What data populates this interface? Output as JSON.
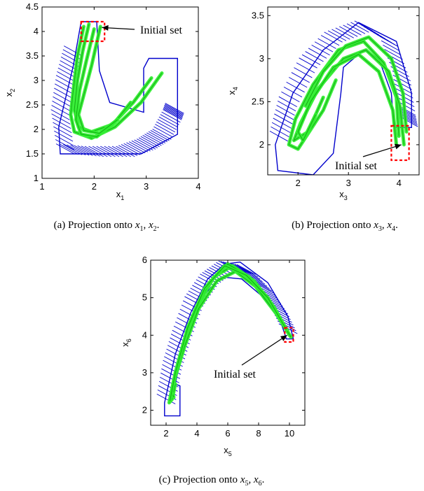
{
  "chart_data": [
    {
      "type": "scatter",
      "caption": {
        "label": "(a)",
        "text": "Projection onto",
        "v1": "x",
        "s1": "1",
        "sep": ",",
        "v2": "x",
        "s2": "2",
        "end": "."
      },
      "xlabel": {
        "base": "x",
        "sub": "1"
      },
      "ylabel": {
        "base": "x",
        "sub": "2"
      },
      "xlim": [
        1,
        4
      ],
      "ylim": [
        1,
        4.5
      ],
      "xticks": [
        "1",
        "2",
        "3",
        "4"
      ],
      "yticks": [
        "1",
        "1.5",
        "2",
        "2.5",
        "3",
        "3.5",
        "4",
        "4.5"
      ],
      "annotation": {
        "text": "Initial set",
        "point": [
          2.15,
          4.08
        ]
      },
      "initial_set": {
        "x": [
          1.75,
          2.2
        ],
        "y": [
          3.8,
          4.2
        ]
      },
      "colors": {
        "reach_set": "#0000cc",
        "trajectories": "#33ee33",
        "initial_set": "#ff0000"
      },
      "reach_hull": [
        [
          1.35,
          1.5
        ],
        [
          2.9,
          1.5
        ],
        [
          3.6,
          1.9
        ],
        [
          3.6,
          3.45
        ],
        [
          3.05,
          3.45
        ],
        [
          2.95,
          3.25
        ],
        [
          2.95,
          2.35
        ],
        [
          2.3,
          2.55
        ],
        [
          2.1,
          3.2
        ],
        [
          2.05,
          4.2
        ],
        [
          1.75,
          4.2
        ],
        [
          1.6,
          3.3
        ],
        [
          1.32,
          2.05
        ]
      ],
      "reach_hatch": [
        [
          1.6,
          3.6
        ],
        [
          1.45,
          3.0
        ],
        [
          1.35,
          2.3
        ],
        [
          1.45,
          1.6
        ],
        [
          2.0,
          1.55
        ],
        [
          2.6,
          1.55
        ],
        [
          3.0,
          1.7
        ],
        [
          3.3,
          1.9
        ],
        [
          3.5,
          2.3
        ],
        [
          3.55,
          2.45
        ]
      ],
      "trajectories": [
        [
          [
            1.8,
            4.1
          ],
          [
            1.68,
            3.5
          ],
          [
            1.6,
            2.8
          ],
          [
            1.55,
            2.3
          ],
          [
            1.62,
            1.95
          ],
          [
            1.95,
            1.82
          ],
          [
            2.4,
            2.05
          ],
          [
            2.9,
            2.55
          ],
          [
            3.3,
            3.15
          ]
        ],
        [
          [
            1.9,
            4.15
          ],
          [
            1.78,
            3.6
          ],
          [
            1.68,
            3.0
          ],
          [
            1.62,
            2.4
          ],
          [
            1.7,
            2.05
          ],
          [
            1.95,
            1.95
          ],
          [
            2.35,
            2.1
          ],
          [
            2.75,
            2.55
          ],
          [
            3.1,
            3.05
          ]
        ],
        [
          [
            2.0,
            4.05
          ],
          [
            1.85,
            3.4
          ],
          [
            1.72,
            2.8
          ],
          [
            1.65,
            2.2
          ],
          [
            1.75,
            1.9
          ],
          [
            2.05,
            1.85
          ],
          [
            2.4,
            2.15
          ],
          [
            2.7,
            2.55
          ]
        ],
        [
          [
            2.12,
            4.1
          ],
          [
            1.95,
            3.3
          ],
          [
            1.8,
            2.7
          ],
          [
            1.7,
            2.3
          ],
          [
            1.8,
            1.98
          ],
          [
            2.1,
            1.92
          ],
          [
            2.45,
            2.2
          ]
        ]
      ]
    },
    {
      "type": "scatter",
      "caption": {
        "label": "(b)",
        "text": "Projection onto",
        "v1": "x",
        "s1": "3",
        "sep": ",",
        "v2": "x",
        "s2": "4",
        "end": "."
      },
      "xlabel": {
        "base": "x",
        "sub": "3"
      },
      "ylabel": {
        "base": "x",
        "sub": "4"
      },
      "xlim": [
        1.4,
        4.4
      ],
      "ylim": [
        1.65,
        3.6
      ],
      "xticks": [
        "2",
        "3",
        "4"
      ],
      "yticks": [
        "2",
        "2.5",
        "3",
        "3.5"
      ],
      "annotation": {
        "text": "Initial set",
        "point": [
          4.05,
          2.0
        ]
      },
      "initial_set": {
        "x": [
          3.85,
          4.2
        ],
        "y": [
          1.82,
          2.22
        ]
      },
      "colors": {
        "reach_set": "#0000cc",
        "trajectories": "#33ee33",
        "initial_set": "#ff0000"
      },
      "reach_hull": [
        [
          1.6,
          1.7
        ],
        [
          2.3,
          1.65
        ],
        [
          2.7,
          1.9
        ],
        [
          2.85,
          2.6
        ],
        [
          2.9,
          2.9
        ],
        [
          3.3,
          3.1
        ],
        [
          3.6,
          3.0
        ],
        [
          3.85,
          2.6
        ],
        [
          3.9,
          2.2
        ],
        [
          4.25,
          2.2
        ],
        [
          4.25,
          2.6
        ],
        [
          3.95,
          3.2
        ],
        [
          3.2,
          3.42
        ],
        [
          2.5,
          3.1
        ],
        [
          1.9,
          2.6
        ],
        [
          1.55,
          2.0
        ]
      ],
      "reach_hatch": [
        [
          1.62,
          2.1
        ],
        [
          1.8,
          2.5
        ],
        [
          2.2,
          2.95
        ],
        [
          2.7,
          3.25
        ],
        [
          3.3,
          3.38
        ],
        [
          3.8,
          3.2
        ],
        [
          4.05,
          2.8
        ],
        [
          4.15,
          2.4
        ],
        [
          4.2,
          2.25
        ]
      ],
      "trajectories": [
        [
          [
            4.0,
            2.1
          ],
          [
            3.95,
            2.55
          ],
          [
            3.7,
            2.95
          ],
          [
            3.3,
            3.2
          ],
          [
            2.8,
            3.1
          ],
          [
            2.3,
            2.7
          ],
          [
            1.95,
            2.3
          ],
          [
            1.82,
            2.0
          ],
          [
            2.0,
            1.95
          ],
          [
            2.5,
            2.4
          ],
          [
            2.75,
            2.75
          ]
        ],
        [
          [
            4.1,
            2.0
          ],
          [
            4.02,
            2.45
          ],
          [
            3.8,
            2.85
          ],
          [
            3.35,
            3.1
          ],
          [
            2.9,
            3.0
          ],
          [
            2.4,
            2.65
          ],
          [
            2.05,
            2.25
          ],
          [
            1.92,
            2.05
          ],
          [
            2.2,
            2.15
          ],
          [
            2.5,
            2.55
          ]
        ],
        [
          [
            3.95,
            2.0
          ],
          [
            3.88,
            2.4
          ],
          [
            3.6,
            2.85
          ],
          [
            3.2,
            3.05
          ],
          [
            2.7,
            2.9
          ],
          [
            2.25,
            2.5
          ],
          [
            2.0,
            2.15
          ],
          [
            2.1,
            2.05
          ],
          [
            2.35,
            2.35
          ]
        ],
        [
          [
            4.15,
            2.15
          ],
          [
            4.08,
            2.6
          ],
          [
            3.85,
            3.0
          ],
          [
            3.4,
            3.25
          ],
          [
            2.95,
            3.15
          ],
          [
            2.5,
            2.85
          ],
          [
            2.15,
            2.45
          ]
        ]
      ]
    },
    {
      "type": "scatter",
      "caption": {
        "label": "(c)",
        "text": "Projection onto",
        "v1": "x",
        "s1": "5",
        "sep": ",",
        "v2": "x",
        "s2": "6",
        "end": "."
      },
      "xlabel": {
        "base": "x",
        "sub": "5"
      },
      "ylabel": {
        "base": "x",
        "sub": "6"
      },
      "xlim": [
        1,
        11
      ],
      "ylim": [
        1.6,
        6
      ],
      "xticks": [
        "2",
        "4",
        "6",
        "8",
        "10"
      ],
      "yticks": [
        "2",
        "3",
        "4",
        "5",
        "6"
      ],
      "annotation": {
        "text": "Initial set",
        "point": [
          9.85,
          4.0
        ]
      },
      "initial_set": {
        "x": [
          9.7,
          10.25
        ],
        "y": [
          3.82,
          4.2
        ]
      },
      "colors": {
        "reach_set": "#0000cc",
        "trajectories": "#33ee33",
        "initial_set": "#ff0000"
      },
      "reach_hull": [
        [
          1.9,
          1.85
        ],
        [
          2.9,
          1.85
        ],
        [
          2.9,
          2.65
        ],
        [
          2.6,
          2.7
        ],
        [
          2.9,
          3.3
        ],
        [
          3.6,
          4.3
        ],
        [
          4.5,
          5.1
        ],
        [
          5.6,
          5.55
        ],
        [
          6.9,
          5.5
        ],
        [
          8.2,
          5.05
        ],
        [
          9.4,
          4.4
        ],
        [
          9.8,
          3.9
        ],
        [
          10.25,
          3.9
        ],
        [
          9.9,
          4.5
        ],
        [
          8.6,
          5.4
        ],
        [
          6.8,
          5.95
        ],
        [
          5.8,
          5.9
        ],
        [
          4.7,
          5.5
        ],
        [
          3.6,
          4.6
        ],
        [
          2.6,
          3.5
        ],
        [
          1.9,
          2.2
        ]
      ],
      "reach_hatch": [
        [
          2.0,
          2.3
        ],
        [
          2.4,
          3.2
        ],
        [
          3.0,
          4.0
        ],
        [
          3.8,
          4.9
        ],
        [
          4.8,
          5.5
        ],
        [
          6.0,
          5.85
        ],
        [
          7.2,
          5.75
        ],
        [
          8.4,
          5.25
        ],
        [
          9.3,
          4.7
        ],
        [
          10.0,
          4.1
        ]
      ],
      "trajectories": [
        [
          [
            10.0,
            4.0
          ],
          [
            9.0,
            4.75
          ],
          [
            7.7,
            5.45
          ],
          [
            6.3,
            5.85
          ],
          [
            5.1,
            5.55
          ],
          [
            3.9,
            4.7
          ],
          [
            3.0,
            3.6
          ],
          [
            2.5,
            2.8
          ],
          [
            2.2,
            2.2
          ],
          [
            2.4,
            2.3
          ],
          [
            2.6,
            2.7
          ]
        ],
        [
          [
            9.9,
            4.1
          ],
          [
            8.8,
            4.85
          ],
          [
            7.4,
            5.55
          ],
          [
            6.0,
            5.9
          ],
          [
            4.8,
            5.4
          ],
          [
            3.6,
            4.4
          ],
          [
            2.8,
            3.3
          ],
          [
            2.35,
            2.5
          ],
          [
            2.5,
            2.35
          ]
        ],
        [
          [
            10.1,
            3.95
          ],
          [
            9.1,
            4.6
          ],
          [
            7.8,
            5.3
          ],
          [
            6.5,
            5.7
          ],
          [
            5.3,
            5.45
          ],
          [
            4.1,
            4.7
          ],
          [
            3.2,
            3.7
          ],
          [
            2.6,
            2.9
          ],
          [
            2.3,
            2.4
          ]
        ],
        [
          [
            9.8,
            4.15
          ],
          [
            8.6,
            5.0
          ],
          [
            7.2,
            5.6
          ],
          [
            5.8,
            5.85
          ],
          [
            4.5,
            5.25
          ],
          [
            3.4,
            4.2
          ],
          [
            2.6,
            3.0
          ],
          [
            2.25,
            2.25
          ]
        ]
      ]
    }
  ]
}
